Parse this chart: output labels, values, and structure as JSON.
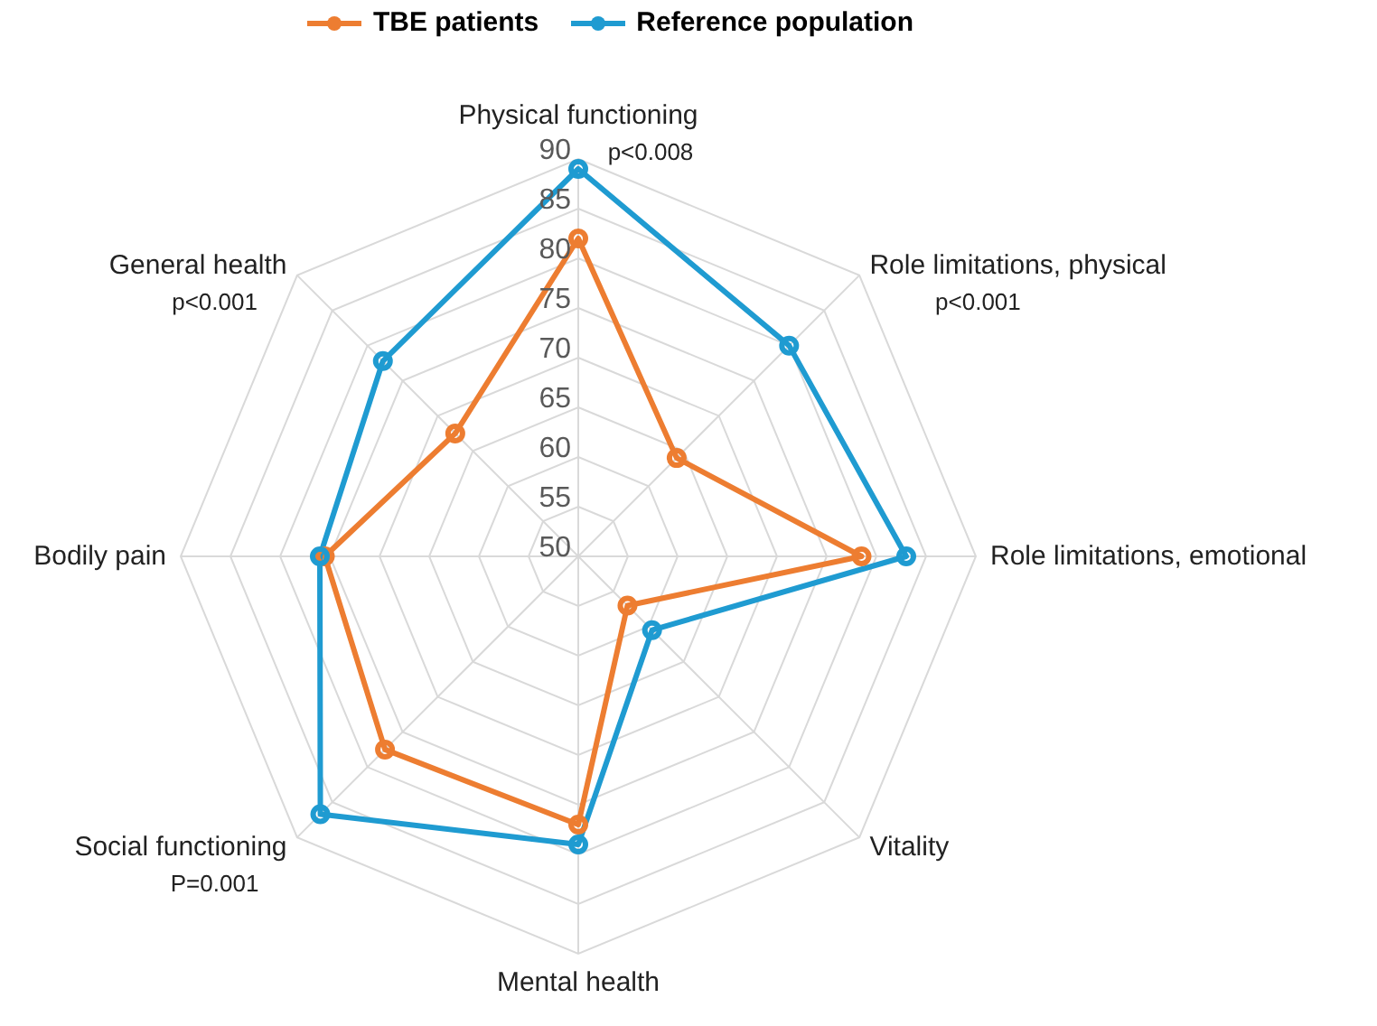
{
  "chart_data": {
    "type": "radar",
    "categories": [
      "Physical functioning",
      "Role limitations, physical",
      "Role limitations, emotional",
      "Vitality",
      "Mental health",
      "Social functioning",
      "Bodily pain",
      "General health"
    ],
    "series": [
      {
        "name": "TBE patients",
        "color": "#ed7d31",
        "values": [
          82,
          64,
          78.5,
          57,
          77,
          77.5,
          75.5,
          67.5
        ]
      },
      {
        "name": "Reference population",
        "color": "#1f9bd1",
        "values": [
          89,
          80,
          83,
          60.5,
          79,
          86.7,
          76,
          77.8
        ]
      }
    ],
    "ylim": [
      50,
      90
    ],
    "yticks": [
      50,
      55,
      60,
      65,
      70,
      75,
      80,
      85,
      90
    ],
    "grid": true,
    "legend": "top",
    "marker": "circle",
    "annotations": [
      {
        "text": "p<0.008",
        "x": "Physical functioning"
      },
      {
        "text": "p<0.001",
        "x": "Role limitations, physical"
      },
      {
        "text": "P=0.001",
        "x": "Social functioning"
      },
      {
        "text": "p<0.001",
        "x": "General health"
      }
    ]
  }
}
